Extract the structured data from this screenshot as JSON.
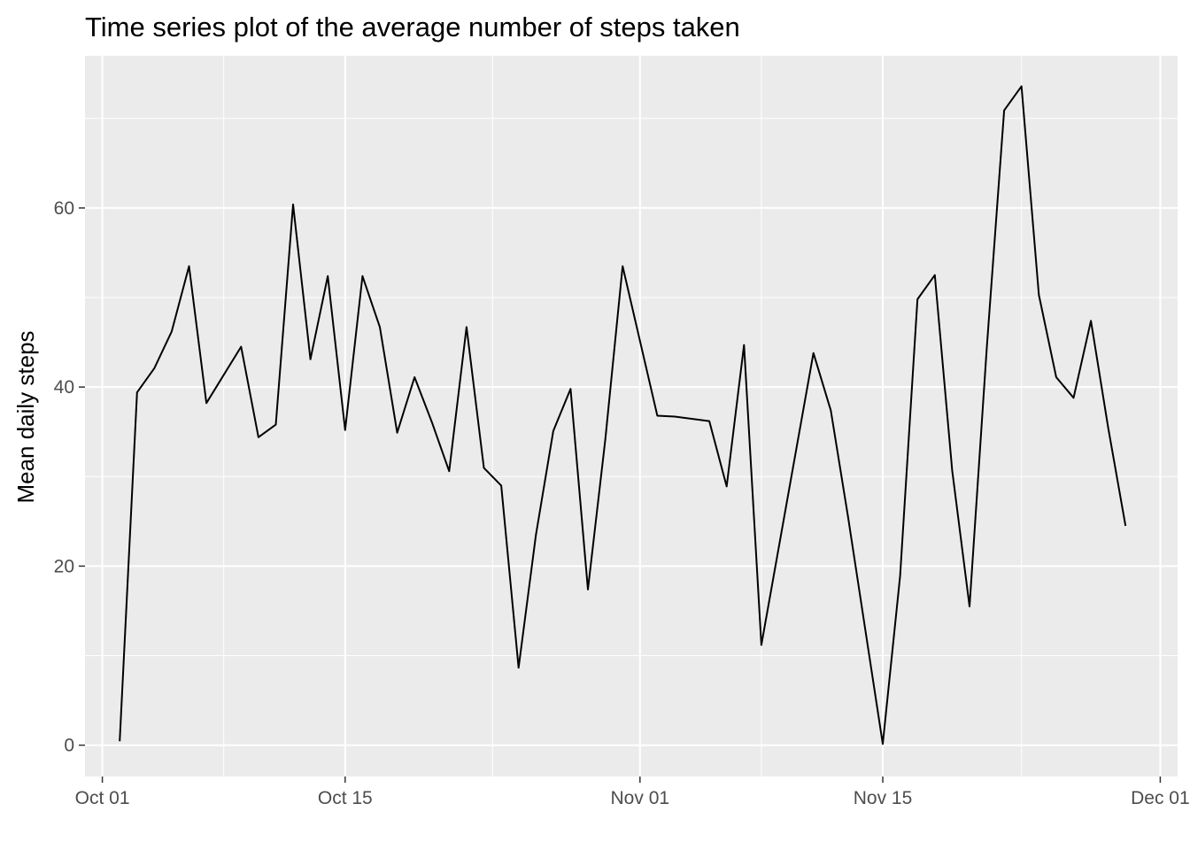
{
  "chart_data": {
    "type": "line",
    "title": "Time series plot of the average number of steps taken",
    "xlabel": "",
    "ylabel": "Mean daily steps",
    "x_ticks": [
      {
        "date": "2012-10-01",
        "label": "Oct 01"
      },
      {
        "date": "2012-10-15",
        "label": "Oct 15"
      },
      {
        "date": "2012-11-01",
        "label": "Nov 01"
      },
      {
        "date": "2012-11-15",
        "label": "Nov 15"
      },
      {
        "date": "2012-12-01",
        "label": "Dec 01"
      }
    ],
    "y_ticks": [
      0,
      20,
      40,
      60
    ],
    "xlim": [
      "2012-09-30",
      "2012-12-02"
    ],
    "ylim": [
      -3.5,
      77
    ],
    "grid": true,
    "line_color": "#000000",
    "panel_color": "#ebebeb",
    "grid_color": "#ffffff",
    "series": [
      {
        "x": [
          "2012-10-02",
          "2012-10-03",
          "2012-10-04",
          "2012-10-05",
          "2012-10-06",
          "2012-10-07",
          "2012-10-09",
          "2012-10-10",
          "2012-10-11",
          "2012-10-12",
          "2012-10-13",
          "2012-10-14",
          "2012-10-15",
          "2012-10-16",
          "2012-10-17",
          "2012-10-18",
          "2012-10-19",
          "2012-10-20",
          "2012-10-21",
          "2012-10-22",
          "2012-10-23",
          "2012-10-24",
          "2012-10-25",
          "2012-10-26",
          "2012-10-27",
          "2012-10-28",
          "2012-10-29",
          "2012-10-30",
          "2012-10-31",
          "2012-11-02",
          "2012-11-03",
          "2012-11-05",
          "2012-11-06",
          "2012-11-07",
          "2012-11-08",
          "2012-11-11",
          "2012-11-12",
          "2012-11-13",
          "2012-11-15",
          "2012-11-16",
          "2012-11-17",
          "2012-11-18",
          "2012-11-19",
          "2012-11-20",
          "2012-11-21",
          "2012-11-22",
          "2012-11-23",
          "2012-11-24",
          "2012-11-25",
          "2012-11-26",
          "2012-11-27",
          "2012-11-28",
          "2012-11-29"
        ],
        "y": [
          0.44,
          39.4,
          42.1,
          46.2,
          53.5,
          38.2,
          44.5,
          34.4,
          35.8,
          60.4,
          43.1,
          52.4,
          35.2,
          52.4,
          46.7,
          34.9,
          41.1,
          36.1,
          30.6,
          46.7,
          30.97,
          29.0,
          8.65,
          23.5,
          35.1,
          39.8,
          17.4,
          34.1,
          53.5,
          36.8,
          36.7,
          36.2,
          28.9,
          44.7,
          11.2,
          43.8,
          37.4,
          25.5,
          0.14,
          18.9,
          49.8,
          52.5,
          30.7,
          15.5,
          44.4,
          70.9,
          73.6,
          50.3,
          41.1,
          38.8,
          47.4,
          35.4,
          24.5
        ]
      }
    ]
  }
}
